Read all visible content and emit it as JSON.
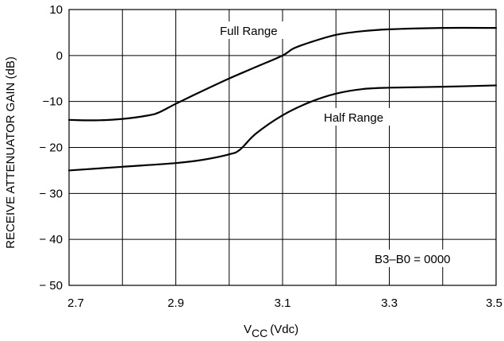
{
  "chart_data": {
    "type": "line",
    "xlabel": "V",
    "xlabel_sub": "CC",
    "xlabel_unit": "(Vdc)",
    "ylabel": "RECEIVE ATTENUATOR GAIN (dB)",
    "xlim": [
      2.7,
      3.5
    ],
    "ylim": [
      -50,
      10
    ],
    "x_ticks": [
      2.7,
      2.9,
      3.1,
      3.3,
      3.5
    ],
    "x_tick_labels": [
      "2.7",
      "2.9",
      "3.1",
      "3.3",
      "3.5"
    ],
    "x_grid": [
      2.7,
      2.8,
      2.9,
      3.0,
      3.1,
      3.2,
      3.3,
      3.4,
      3.5
    ],
    "y_ticks": [
      10,
      0,
      -10,
      -20,
      -30,
      -40,
      -50
    ],
    "y_tick_labels": [
      "10",
      "0",
      "−10",
      "− 20",
      "− 30",
      "− 40",
      "− 50"
    ],
    "grid": true,
    "series": [
      {
        "name": "Full Range",
        "x": [
          2.7,
          2.75,
          2.8,
          2.85,
          2.87,
          2.9,
          2.95,
          3.0,
          3.05,
          3.1,
          3.12,
          3.15,
          3.2,
          3.25,
          3.3,
          3.4,
          3.5
        ],
        "y": [
          -14,
          -14.1,
          -13.8,
          -13,
          -12.3,
          -10.5,
          -7.7,
          -5,
          -2.5,
          0,
          1.5,
          2.8,
          4.5,
          5.3,
          5.7,
          6,
          6
        ]
      },
      {
        "name": "Half Range",
        "x": [
          2.7,
          2.8,
          2.9,
          2.95,
          3.0,
          3.02,
          3.05,
          3.1,
          3.15,
          3.2,
          3.25,
          3.3,
          3.4,
          3.5
        ],
        "y": [
          -25,
          -24.2,
          -23.4,
          -22.7,
          -21.5,
          -20.5,
          -17,
          -13,
          -10.2,
          -8.3,
          -7.3,
          -7,
          -6.8,
          -6.5
        ]
      }
    ],
    "annotations": [
      "Full Range",
      "Half Range",
      "B3–B0 = 0000"
    ]
  }
}
